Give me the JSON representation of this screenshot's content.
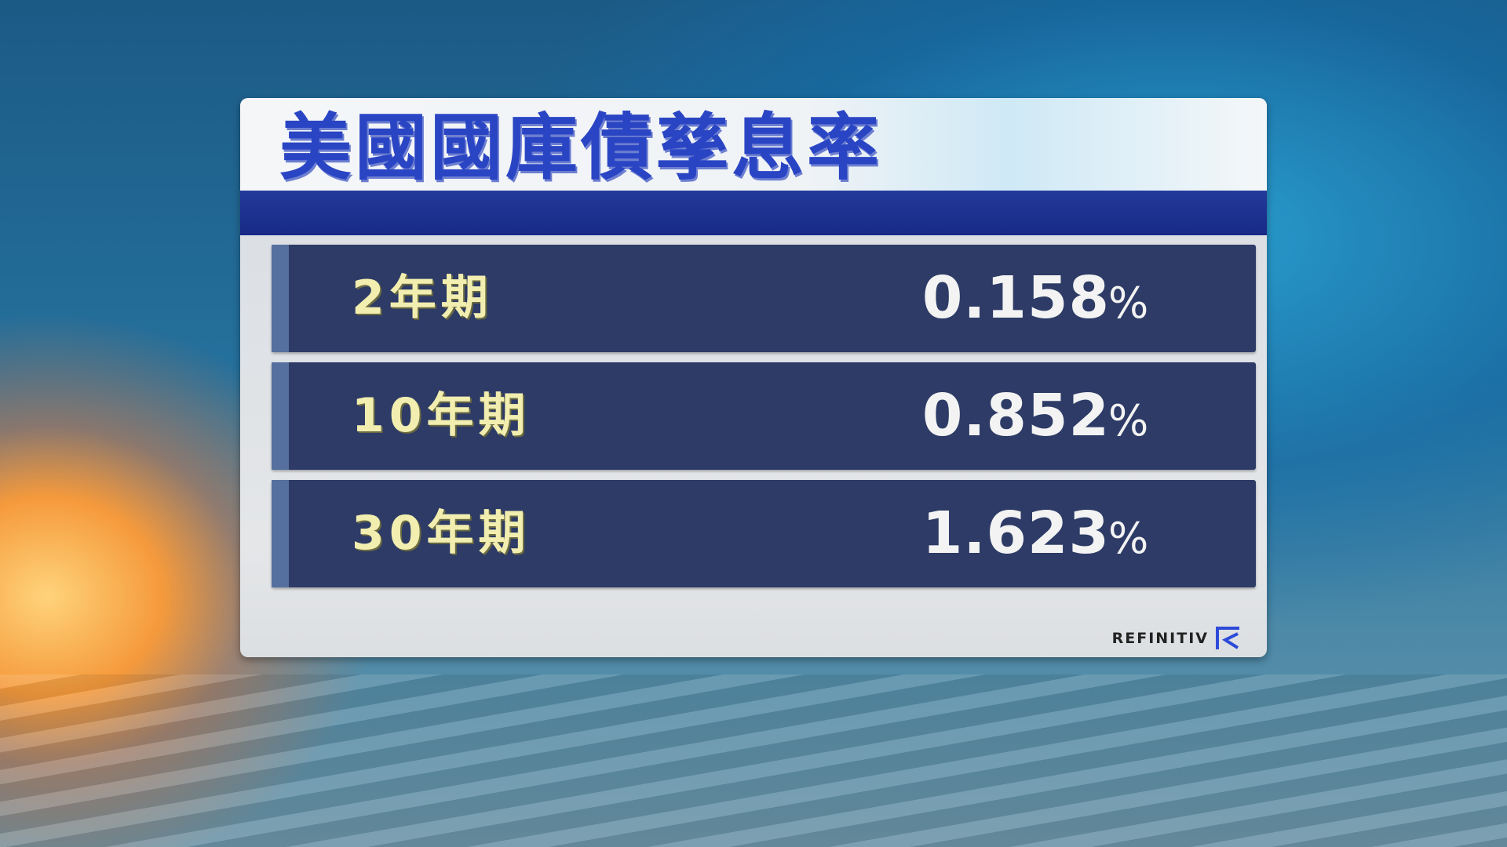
{
  "title": "美國國庫債孳息率",
  "rows": [
    {
      "label": "2年期",
      "value": "0.158",
      "unit": "%"
    },
    {
      "label": "10年期",
      "value": "0.852",
      "unit": "%"
    },
    {
      "label": "30年期",
      "value": "1.623",
      "unit": "%"
    }
  ],
  "source": {
    "logo_text": "REFINITIV",
    "icon": "refinitiv-logo-icon",
    "logo_color": "#2d4bd8"
  },
  "colors": {
    "title": "#2a45c4",
    "row_bg": "#2d3b66",
    "label": "#f2eeb0",
    "value": "#f3f3f3"
  }
}
